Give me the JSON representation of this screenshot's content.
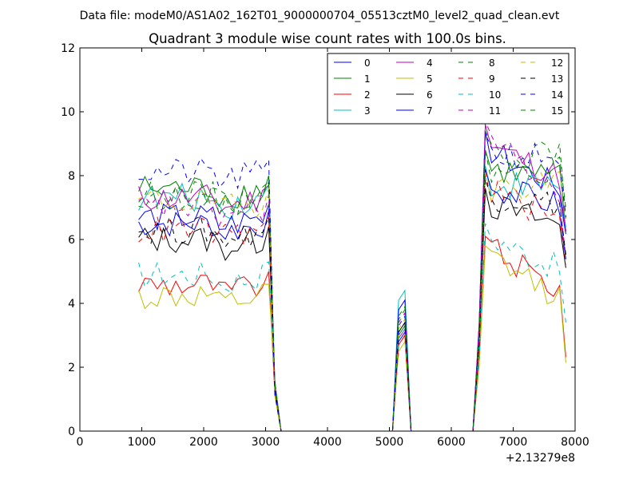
{
  "chart_data": {
    "type": "line",
    "suptitle": "Data file: modeM0/AS1A02_162T01_9000000704_05513cztM0_level2_quad_clean.evt",
    "title": "Quadrant 3 module wise count rates with 100.0s bins.",
    "xlabel": "",
    "ylabel": "",
    "x_offset_label": "+2.13279e8",
    "xlim": [
      0,
      8000
    ],
    "ylim": [
      0,
      12
    ],
    "xticks": [
      0,
      1000,
      2000,
      3000,
      4000,
      5000,
      6000,
      7000,
      8000
    ],
    "yticks": [
      0,
      2,
      4,
      6,
      8,
      10,
      12
    ],
    "x": [
      950,
      1050,
      1150,
      1250,
      1350,
      1450,
      1550,
      1650,
      1750,
      1850,
      1950,
      2050,
      2150,
      2250,
      2350,
      2450,
      2550,
      2650,
      2750,
      2850,
      2950,
      3050,
      3150,
      3250,
      3350,
      3450,
      3550,
      3650,
      3750,
      3850,
      3950,
      4050,
      4150,
      4250,
      4350,
      4450,
      4550,
      4650,
      4750,
      4850,
      4950,
      5050,
      5150,
      5250,
      5350,
      5450,
      5550,
      5650,
      5750,
      5850,
      5950,
      6050,
      6150,
      6250,
      6350,
      6450,
      6550,
      6650,
      6750,
      6850,
      6950,
      7050,
      7150,
      7250,
      7350,
      7450,
      7550,
      7650,
      7750,
      7850
    ],
    "legend": {
      "location": "upper right",
      "ncol": 4
    },
    "series": [
      {
        "name": "0",
        "color": "#0000ff",
        "dash": "solid",
        "level": 6.5,
        "spike": 3.1,
        "peak": 9.4,
        "end": 7.5
      },
      {
        "name": "1",
        "color": "#008000",
        "dash": "solid",
        "level": 7.6,
        "spike": 3.3,
        "peak": 8.8,
        "end": 7.9
      },
      {
        "name": "2",
        "color": "#ff0000",
        "dash": "solid",
        "level": 4.6,
        "spike": 3.0,
        "peak": 6.1,
        "end": 4.3
      },
      {
        "name": "3",
        "color": "#00bfbf",
        "dash": "solid",
        "level": 7.3,
        "spike": 4.4,
        "peak": 8.3,
        "end": 7.7
      },
      {
        "name": "4",
        "color": "#bf00bf",
        "dash": "solid",
        "level": 7.3,
        "spike": 3.2,
        "peak": 9.6,
        "end": 7.9
      },
      {
        "name": "5",
        "color": "#bfbf00",
        "dash": "solid",
        "level": 4.2,
        "spike": 2.8,
        "peak": 5.8,
        "end": 4.1
      },
      {
        "name": "6",
        "color": "#000000",
        "dash": "solid",
        "level": 6.0,
        "spike": 3.4,
        "peak": 7.6,
        "end": 6.4
      },
      {
        "name": "7",
        "color": "#0000ff",
        "dash": "solid",
        "level": 6.7,
        "spike": 4.1,
        "peak": 8.2,
        "end": 7.0
      },
      {
        "name": "8",
        "color": "#008000",
        "dash": "dashed",
        "level": 7.4,
        "spike": 3.9,
        "peak": 9.4,
        "end": 8.6
      },
      {
        "name": "9",
        "color": "#ff0000",
        "dash": "dashed",
        "level": 6.3,
        "spike": 3.0,
        "peak": 8.1,
        "end": 6.5
      },
      {
        "name": "10",
        "color": "#00bfbf",
        "dash": "dashed",
        "level": 4.9,
        "spike": 3.2,
        "peak": 6.5,
        "end": 5.0
      },
      {
        "name": "11",
        "color": "#bf00bf",
        "dash": "dashed",
        "level": 7.0,
        "spike": 3.7,
        "peak": 9.7,
        "end": 7.4
      },
      {
        "name": "12",
        "color": "#bfbf00",
        "dash": "dashed",
        "level": 7.2,
        "spike": 3.5,
        "peak": 8.1,
        "end": 7.9
      },
      {
        "name": "13",
        "color": "#000000",
        "dash": "dashed",
        "level": 6.3,
        "spike": 3.4,
        "peak": 7.9,
        "end": 7.1
      },
      {
        "name": "14",
        "color": "#0000ff",
        "dash": "dashed",
        "level": 8.1,
        "spike": 3.6,
        "peak": 9.3,
        "end": 8.6
      },
      {
        "name": "15",
        "color": "#008000",
        "dash": "dashed",
        "level": 7.4,
        "spike": 3.8,
        "peak": 8.8,
        "end": 8.2
      }
    ]
  }
}
